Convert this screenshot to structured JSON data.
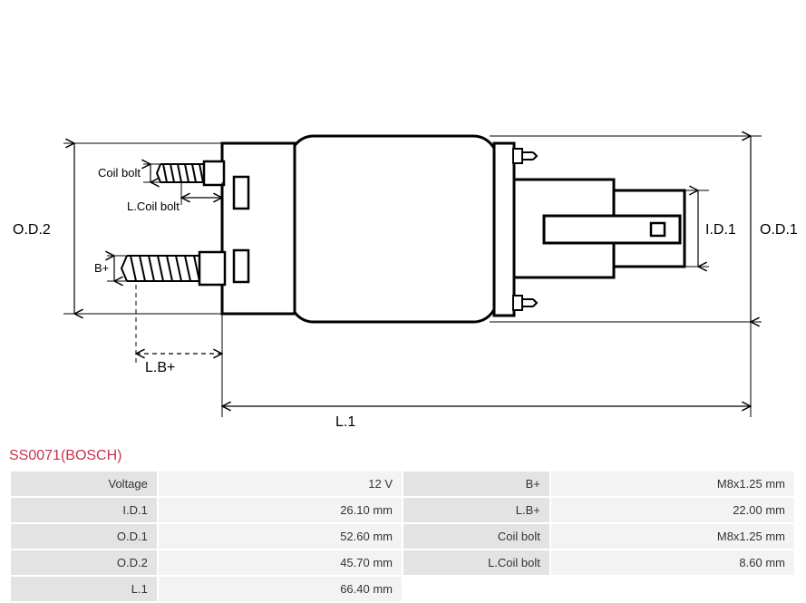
{
  "part": {
    "title": "SS0071(BOSCH)"
  },
  "diagram": {
    "labels": {
      "od2": "O.D.2",
      "od1": "O.D.1",
      "id1": "I.D.1",
      "l1": "L.1",
      "lbplus": "L.B+",
      "bplus": "B+",
      "coilbolt": "Coil bolt",
      "lcoilbolt": "L.Coil bolt"
    },
    "stroke": "#000000",
    "stroke_dash": "#000000",
    "background": "#ffffff"
  },
  "specs": {
    "rows": [
      {
        "l1": "Voltage",
        "v1": "12 V",
        "l2": "B+",
        "v2": "M8x1.25 mm"
      },
      {
        "l1": "I.D.1",
        "v1": "26.10 mm",
        "l2": "L.B+",
        "v2": "22.00 mm"
      },
      {
        "l1": "O.D.1",
        "v1": "52.60 mm",
        "l2": "Coil bolt",
        "v2": "M8x1.25 mm"
      },
      {
        "l1": "O.D.2",
        "v1": "45.70 mm",
        "l2": "L.Coil bolt",
        "v2": "8.60 mm"
      },
      {
        "l1": "L.1",
        "v1": "66.40 mm",
        "l2": "",
        "v2": ""
      }
    ]
  }
}
